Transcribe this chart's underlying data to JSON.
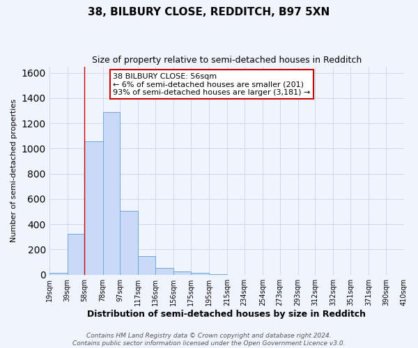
{
  "title": "38, BILBURY CLOSE, REDDITCH, B97 5XN",
  "subtitle": "Size of property relative to semi-detached houses in Redditch",
  "xlabel": "Distribution of semi-detached houses by size in Redditch",
  "ylabel": "Number of semi-detached properties",
  "bin_edges": [
    19,
    39,
    58,
    78,
    97,
    117,
    136,
    156,
    175,
    195,
    215,
    234,
    254,
    273,
    293,
    312,
    332,
    351,
    371,
    390,
    410
  ],
  "bin_counts": [
    15,
    325,
    1060,
    1290,
    505,
    150,
    55,
    25,
    15,
    5,
    0,
    0,
    0,
    0,
    0,
    0,
    0,
    0,
    0,
    0
  ],
  "bar_color": "#c9daf8",
  "bar_edge_color": "#6fa8dc",
  "grid_color": "#d0d8e8",
  "background_color": "#f0f4fc",
  "property_line_x": 58,
  "property_line_color": "#cc0000",
  "annotation_text": "38 BILBURY CLOSE: 56sqm\n← 6% of semi-detached houses are smaller (201)\n93% of semi-detached houses are larger (3,181) →",
  "annotation_box_color": "#ffffff",
  "annotation_box_edge_color": "#cc0000",
  "ylim": [
    0,
    1650
  ],
  "tick_labels": [
    "19sqm",
    "39sqm",
    "58sqm",
    "78sqm",
    "97sqm",
    "117sqm",
    "136sqm",
    "156sqm",
    "175sqm",
    "195sqm",
    "215sqm",
    "234sqm",
    "254sqm",
    "273sqm",
    "293sqm",
    "312sqm",
    "332sqm",
    "351sqm",
    "371sqm",
    "390sqm",
    "410sqm"
  ],
  "footer_text": "Contains HM Land Registry data © Crown copyright and database right 2024.\nContains public sector information licensed under the Open Government Licence v3.0.",
  "title_fontsize": 11,
  "subtitle_fontsize": 9,
  "xlabel_fontsize": 9,
  "ylabel_fontsize": 8,
  "tick_fontsize": 7,
  "footer_fontsize": 6.5,
  "annotation_fontsize": 8
}
